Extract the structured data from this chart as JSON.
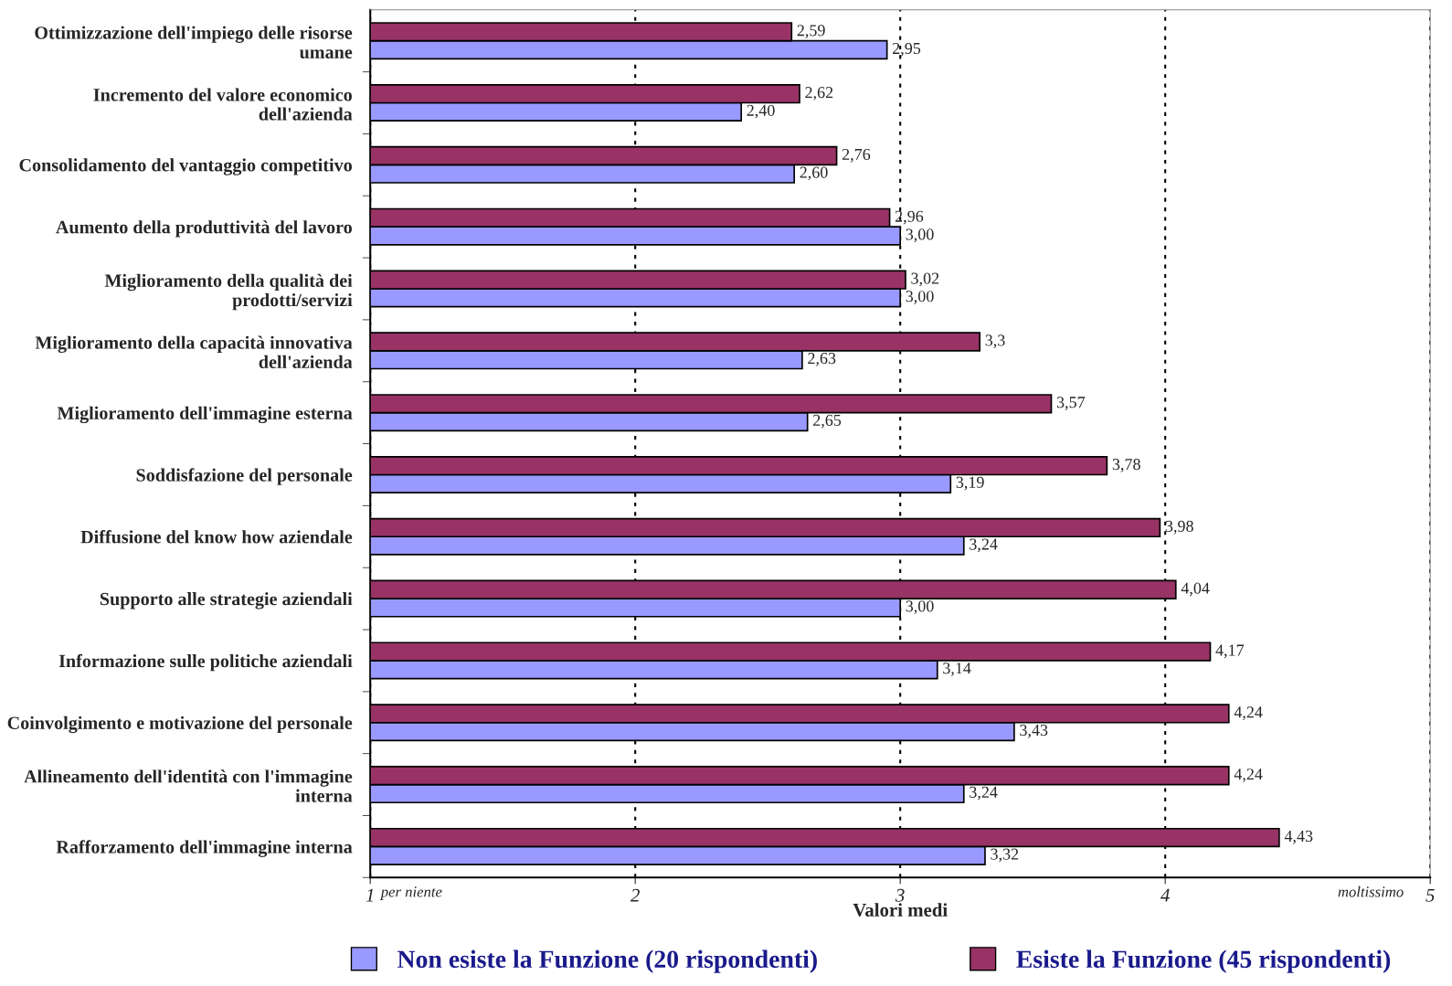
{
  "chart_data": {
    "type": "bar",
    "orientation": "horizontal",
    "categories": [
      "Ottimizzazione dell'impiego delle risorse umane",
      "Incremento del valore economico dell'azienda",
      "Consolidamento del vantaggio competitivo",
      "Aumento della produttività del lavoro",
      "Miglioramento della qualità dei prodotti/servizi",
      "Miglioramento della capacità innovativa dell'azienda",
      "Miglioramento dell'immagine esterna",
      "Soddisfazione del personale",
      "Diffusione del know how aziendale",
      "Supporto alle strategie aziendali",
      "Informazione sulle politiche aziendali",
      "Coinvolgimento e motivazione del personale",
      "Allineamento dell'identità con l'immagine interna",
      "Rafforzamento dell'immagine interna"
    ],
    "series": [
      {
        "name": "Non esiste la Funzione (20 rispondenti)",
        "color": "#9999ff",
        "values": [
          2.95,
          2.4,
          2.6,
          3.0,
          3.0,
          2.63,
          2.65,
          3.19,
          3.24,
          3.0,
          3.14,
          3.43,
          3.24,
          3.32
        ],
        "value_labels": [
          "2,95",
          "2,40",
          "2,60",
          "3,00",
          "3,00",
          "2,63",
          "2,65",
          "3,19",
          "3,24",
          "3,00",
          "3,14",
          "3,43",
          "3,24",
          "3,32"
        ]
      },
      {
        "name": "Esiste la Funzione (45 rispondenti)",
        "color": "#993366",
        "values": [
          2.59,
          2.62,
          2.76,
          2.96,
          3.02,
          3.3,
          3.57,
          3.78,
          3.98,
          4.04,
          4.17,
          4.24,
          4.24,
          4.43
        ],
        "value_labels": [
          "2,59",
          "2,62",
          "2,76",
          "2,96",
          "3,02",
          "3,3",
          "3,57",
          "3,78",
          "3,98",
          "4,04",
          "4,17",
          "4,24",
          "4,24",
          "4,43"
        ]
      }
    ],
    "xlim": [
      1,
      5
    ],
    "xticks": [
      1,
      2,
      3,
      4,
      5
    ],
    "xlabel": "Valori medi",
    "annotations": [
      "per niente",
      "moltissimo"
    ],
    "grid": "x",
    "legend": "bottom"
  }
}
